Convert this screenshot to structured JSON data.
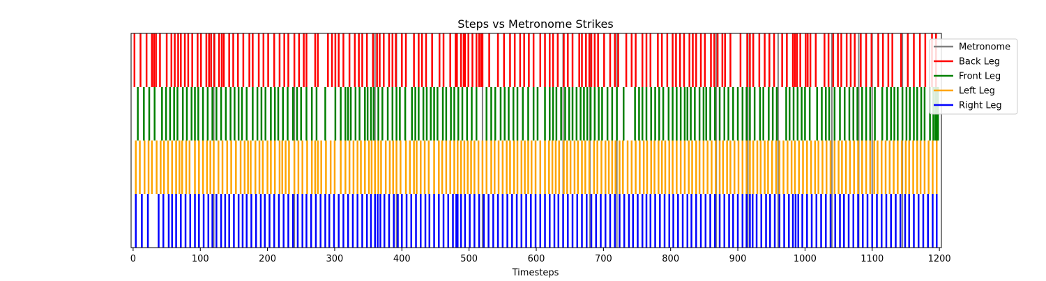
{
  "chart_data": {
    "type": "event_raster",
    "title": "Steps vs Metronome Strikes",
    "xlabel": "Timesteps",
    "ylabel": "",
    "xlim": [
      -3,
      1203
    ],
    "x_ticks": [
      0,
      100,
      200,
      300,
      400,
      500,
      600,
      700,
      800,
      900,
      1000,
      1100,
      1200
    ],
    "y_ticks_visible": false,
    "grid": false,
    "legend_position": "upper-right-outside",
    "legend": [
      {
        "label": "Metronome",
        "color": "#808080"
      },
      {
        "label": "Back Leg",
        "color": "#ff0000"
      },
      {
        "label": "Front Leg",
        "color": "#008000"
      },
      {
        "label": "Left Leg",
        "color": "#ffa500"
      },
      {
        "label": "Right Leg",
        "color": "#0000ff"
      }
    ],
    "metronome": {
      "name": "Metronome",
      "color": "#808080",
      "x": [
        120,
        240,
        360,
        392,
        520,
        640,
        680,
        720,
        868,
        915,
        960,
        1040,
        1080,
        1100,
        1145
      ]
    },
    "series": [
      {
        "name": "Back Leg",
        "color": "#ff0000",
        "row": 0,
        "x": [
          2,
          11,
          20,
          28,
          31,
          34,
          40,
          50,
          57,
          62,
          67,
          71,
          77,
          82,
          88,
          96,
          101,
          109,
          113,
          116,
          121,
          128,
          132,
          135,
          143,
          149,
          156,
          164,
          173,
          178,
          187,
          194,
          201,
          210,
          218,
          225,
          231,
          240,
          247,
          254,
          258,
          271,
          275,
          290,
          296,
          301,
          306,
          313,
          322,
          330,
          336,
          341,
          348,
          357,
          363,
          367,
          373,
          381,
          386,
          391,
          400,
          406,
          418,
          425,
          430,
          436,
          445,
          456,
          462,
          472,
          480,
          482,
          488,
          492,
          494,
          499,
          505,
          511,
          515,
          518,
          520,
          530,
          543,
          552,
          561,
          568,
          576,
          582,
          589,
          596,
          606,
          613,
          620,
          625,
          632,
          641,
          647,
          654,
          664,
          668,
          674,
          679,
          682,
          687,
          692,
          701,
          710,
          717,
          722,
          734,
          742,
          748,
          758,
          764,
          770,
          781,
          787,
          795,
          803,
          808,
          814,
          820,
          828,
          833,
          838,
          845,
          851,
          860,
          865,
          870,
          877,
          881,
          889,
          904,
          914,
          918,
          923,
          932,
          940,
          947,
          954,
          966,
          973,
          982,
          985,
          988,
          993,
          1001,
          1004,
          1008,
          1016,
          1029,
          1035,
          1042,
          1049,
          1054,
          1062,
          1068,
          1074,
          1083,
          1091,
          1099,
          1109,
          1116,
          1124,
          1130,
          1143,
          1153,
          1162,
          1171,
          1179,
          1189,
          1195
        ]
      },
      {
        "name": "Front Leg",
        "color": "#008000",
        "row": 1,
        "x": [
          7,
          16,
          24,
          32,
          43,
          49,
          55,
          61,
          66,
          74,
          80,
          87,
          92,
          97,
          104,
          111,
          118,
          124,
          131,
          138,
          145,
          151,
          157,
          162,
          169,
          178,
          185,
          191,
          197,
          205,
          211,
          216,
          223,
          230,
          238,
          244,
          250,
          258,
          266,
          273,
          286,
          301,
          309,
          316,
          320,
          324,
          331,
          337,
          345,
          349,
          354,
          358,
          365,
          371,
          379,
          386,
          392,
          397,
          405,
          415,
          420,
          425,
          432,
          437,
          443,
          448,
          453,
          461,
          466,
          473,
          478,
          484,
          490,
          497,
          504,
          511,
          526,
          533,
          539,
          547,
          553,
          559,
          566,
          572,
          580,
          588,
          596,
          602,
          613,
          620,
          625,
          630,
          637,
          643,
          649,
          654,
          660,
          666,
          671,
          676,
          681,
          687,
          693,
          698,
          706,
          713,
          720,
          730,
          747,
          753,
          758,
          764,
          771,
          777,
          783,
          789,
          797,
          803,
          809,
          815,
          821,
          825,
          830,
          836,
          843,
          849,
          853,
          859,
          866,
          873,
          880,
          886,
          893,
          900,
          907,
          913,
          918,
          925,
          933,
          938,
          946,
          952,
          958,
          972,
          977,
          983,
          989,
          995,
          1000,
          1007,
          1018,
          1025,
          1031,
          1036,
          1044,
          1052,
          1059,
          1066,
          1072,
          1078,
          1085,
          1091,
          1097,
          1104,
          1115,
          1122,
          1128,
          1133,
          1138,
          1145,
          1151,
          1156,
          1162,
          1167,
          1173,
          1178,
          1186,
          1191,
          1194,
          1196,
          1198
        ]
      },
      {
        "name": "Left Leg",
        "color": "#ffa500",
        "row": 2,
        "x": [
          4,
          10,
          17,
          23,
          28,
          35,
          41,
          46,
          52,
          58,
          64,
          69,
          73,
          79,
          84,
          92,
          98,
          104,
          110,
          115,
          120,
          127,
          133,
          140,
          146,
          153,
          160,
          166,
          171,
          175,
          182,
          188,
          193,
          200,
          205,
          211,
          218,
          222,
          227,
          232,
          240,
          246,
          252,
          259,
          266,
          271,
          275,
          280,
          287,
          294,
          300,
          309,
          316,
          322,
          328,
          334,
          339,
          345,
          351,
          355,
          360,
          365,
          369,
          376,
          382,
          387,
          392,
          398,
          406,
          412,
          418,
          422,
          428,
          434,
          440,
          448,
          455,
          460,
          466,
          472,
          478,
          483,
          488,
          493,
          498,
          503,
          508,
          514,
          520,
          526,
          533,
          538,
          544,
          550,
          556,
          561,
          567,
          572,
          578,
          583,
          588,
          593,
          599,
          606,
          613,
          619,
          624,
          629,
          634,
          641,
          646,
          651,
          657,
          662,
          668,
          673,
          679,
          686,
          691,
          697,
          703,
          708,
          713,
          718,
          724,
          729,
          736,
          742,
          748,
          754,
          760,
          765,
          771,
          776,
          782,
          787,
          792,
          798,
          803,
          809,
          815,
          821,
          827,
          832,
          838,
          843,
          849,
          855,
          861,
          867,
          873,
          878,
          884,
          889,
          895,
          901,
          907,
          913,
          918,
          923,
          929,
          934,
          940,
          945,
          951,
          957,
          962,
          968,
          974,
          980,
          985,
          991,
          997,
          1003,
          1009,
          1015,
          1020,
          1026,
          1032,
          1038,
          1044,
          1050,
          1055,
          1061,
          1067,
          1073,
          1079,
          1085,
          1091,
          1097,
          1103,
          1108,
          1114,
          1120,
          1126,
          1132,
          1138,
          1144,
          1150,
          1155,
          1161,
          1167,
          1172,
          1178,
          1184,
          1190,
          1196
        ]
      },
      {
        "name": "Right Leg",
        "color": "#0000ff",
        "row": 3,
        "x": [
          4,
          13,
          22,
          38,
          45,
          53,
          58,
          64,
          71,
          78,
          85,
          92,
          98,
          105,
          112,
          118,
          124,
          131,
          137,
          143,
          150,
          157,
          163,
          169,
          176,
          183,
          190,
          196,
          203,
          210,
          217,
          224,
          231,
          238,
          245,
          252,
          258,
          265,
          272,
          279,
          286,
          292,
          299,
          306,
          313,
          320,
          327,
          334,
          341,
          348,
          354,
          360,
          364,
          368,
          374,
          381,
          388,
          394,
          400,
          407,
          414,
          421,
          428,
          435,
          441,
          448,
          455,
          462,
          469,
          476,
          481,
          483,
          488,
          494,
          501,
          508,
          515,
          522,
          529,
          536,
          543,
          550,
          557,
          564,
          571,
          578,
          585,
          592,
          599,
          606,
          613,
          620,
          627,
          633,
          640,
          647,
          654,
          661,
          668,
          675,
          682,
          689,
          696,
          703,
          710,
          717,
          724,
          731,
          738,
          744,
          751,
          758,
          764,
          770,
          777,
          784,
          791,
          798,
          804,
          811,
          818,
          825,
          831,
          838,
          845,
          852,
          859,
          866,
          873,
          880,
          887,
          893,
          900,
          907,
          913,
          918,
          922,
          928,
          935,
          942,
          948,
          955,
          962,
          969,
          976,
          982,
          986,
          990,
          996,
          1003,
          1010,
          1017,
          1024,
          1031,
          1038,
          1045,
          1052,
          1058,
          1065,
          1072,
          1079,
          1086,
          1093,
          1100,
          1107,
          1114,
          1121,
          1128,
          1135,
          1142,
          1149,
          1155,
          1162,
          1169,
          1176,
          1183,
          1190,
          1196
        ]
      }
    ]
  }
}
